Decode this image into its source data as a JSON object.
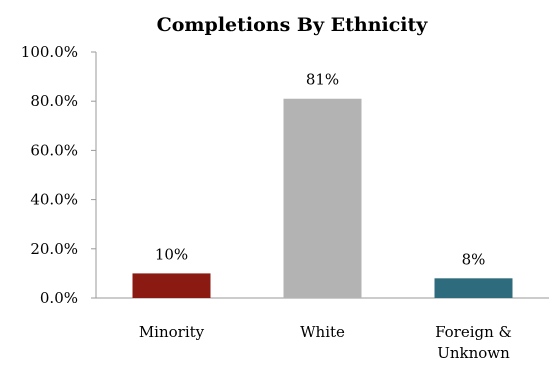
{
  "chart_data": {
    "type": "bar",
    "title": "Completions By Ethnicity",
    "xlabel": "",
    "ylabel": "",
    "categories": [
      [
        "Minority"
      ],
      [
        "White"
      ],
      [
        "Foreign &",
        "Unknown"
      ]
    ],
    "values": [
      10,
      81,
      8
    ],
    "data_labels": [
      "10%",
      "81%",
      "8%"
    ],
    "colors": [
      "#8b1a12",
      "#b3b3b3",
      "#2e6b7c"
    ],
    "ylim": [
      0,
      100
    ],
    "yticks": [
      0,
      20,
      40,
      60,
      80,
      100
    ],
    "ytick_labels": [
      "0.0%",
      "20.0%",
      "40.0%",
      "60.0%",
      "80.0%",
      "100.0%"
    ],
    "grid": false,
    "legend": "none"
  }
}
